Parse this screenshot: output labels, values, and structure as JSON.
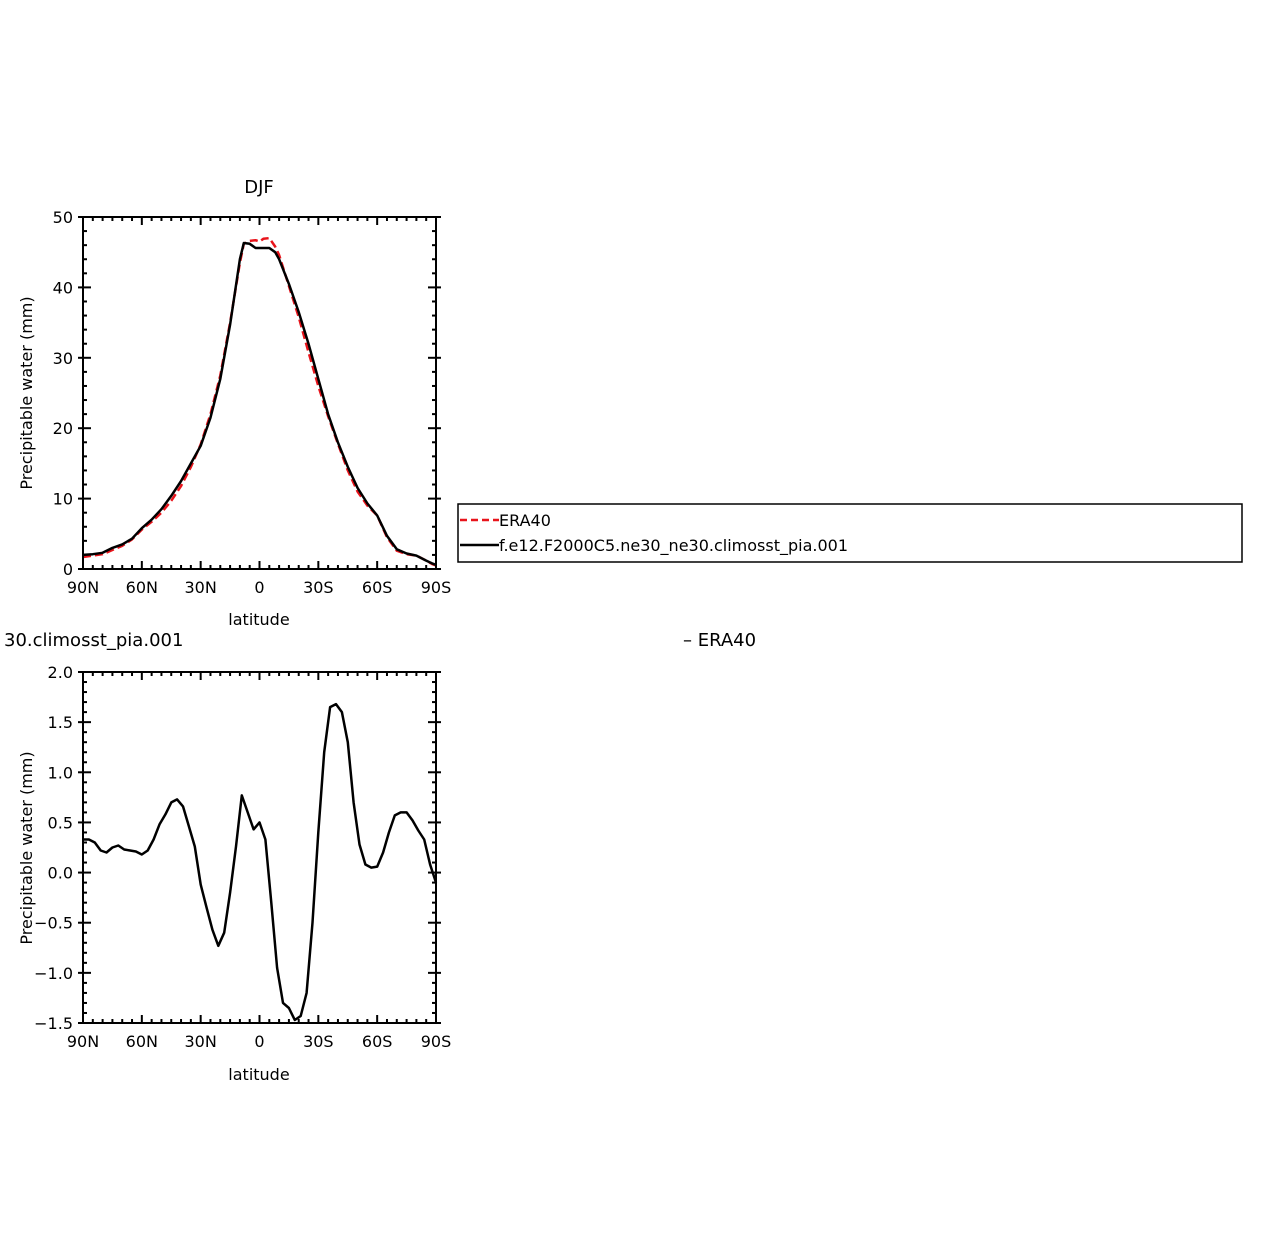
{
  "colors": {
    "era40": "#e8141b",
    "model": "#000000",
    "axis": "#000000",
    "background": "#ffffff"
  },
  "legend": {
    "entries": [
      {
        "label": "ERA40",
        "color": "#e8141b",
        "dash": true
      },
      {
        "label": "f.e12.F2000C5.ne30_ne30.climosst_pia.001",
        "color": "#000000",
        "dash": false
      }
    ]
  },
  "chart_data": [
    {
      "type": "line",
      "title": "DJF",
      "xlabel": "latitude",
      "ylabel": "Precipitable water (mm)",
      "xlim": [
        90,
        -90
      ],
      "ylim": [
        0,
        50
      ],
      "xticks": [
        90,
        60,
        30,
        0,
        -30,
        -60,
        -90
      ],
      "xtick_labels": [
        "90N",
        "60N",
        "30N",
        "0",
        "30S",
        "60S",
        "90S"
      ],
      "yticks": [
        0,
        10,
        20,
        30,
        40,
        50
      ],
      "ytick_labels": [
        "0",
        "10",
        "20",
        "30",
        "40",
        "50"
      ],
      "series": [
        {
          "name": "ERA40",
          "color": "#e8141b",
          "dash": true,
          "x": [
            90,
            85,
            80,
            75,
            70,
            65,
            60,
            55,
            50,
            45,
            40,
            35,
            30,
            25,
            20,
            15,
            10,
            8,
            5,
            2,
            0,
            -2,
            -5,
            -8,
            -10,
            -15,
            -20,
            -25,
            -30,
            -35,
            -40,
            -45,
            -50,
            -55,
            -60,
            -65,
            -70,
            -75,
            -80,
            -85,
            -88,
            -90
          ],
          "y": [
            1.7,
            1.9,
            2.1,
            2.7,
            3.3,
            4.2,
            5.6,
            6.7,
            8.0,
            9.7,
            11.8,
            14.5,
            17.7,
            22.0,
            27.5,
            35.0,
            43.5,
            46.2,
            46.6,
            46.7,
            46.5,
            46.9,
            47.0,
            45.8,
            44.6,
            40.2,
            35.8,
            30.8,
            26.0,
            21.7,
            17.8,
            14.0,
            11.0,
            9.0,
            7.6,
            4.5,
            2.6,
            2.1,
            1.9,
            1.2,
            0.7,
            0.5
          ]
        },
        {
          "name": "f.e12.F2000C5.ne30_ne30.climosst_pia.001",
          "color": "#000000",
          "dash": false,
          "x": [
            90,
            85,
            80,
            75,
            70,
            65,
            60,
            55,
            50,
            45,
            40,
            35,
            30,
            25,
            20,
            15,
            10,
            8,
            5,
            2,
            0,
            -2,
            -5,
            -8,
            -10,
            -15,
            -20,
            -25,
            -30,
            -35,
            -40,
            -45,
            -50,
            -55,
            -60,
            -65,
            -70,
            -75,
            -80,
            -85,
            -88,
            -90
          ],
          "y": [
            2.0,
            2.1,
            2.3,
            3.0,
            3.5,
            4.3,
            5.8,
            7.0,
            8.5,
            10.4,
            12.5,
            15.0,
            17.5,
            21.5,
            27.0,
            34.7,
            44.0,
            46.3,
            46.2,
            45.6,
            45.6,
            45.6,
            45.6,
            45.0,
            44.0,
            40.5,
            36.5,
            32.0,
            27.0,
            22.0,
            18.0,
            14.5,
            11.5,
            9.3,
            7.6,
            4.7,
            2.8,
            2.2,
            1.9,
            1.2,
            0.8,
            0.6
          ]
        }
      ]
    },
    {
      "type": "line",
      "title": "30.climosst_pia.001",
      "title_right": "– ERA40",
      "xlabel": "latitude",
      "ylabel": "Precipitable water (mm)",
      "xlim": [
        90,
        -90
      ],
      "ylim": [
        -1.5,
        2.0
      ],
      "xticks": [
        90,
        60,
        30,
        0,
        -30,
        -60,
        -90
      ],
      "xtick_labels": [
        "90N",
        "60N",
        "30N",
        "0",
        "30S",
        "60S",
        "90S"
      ],
      "yticks": [
        -1.5,
        -1.0,
        -0.5,
        0.0,
        0.5,
        1.0,
        1.5,
        2.0
      ],
      "ytick_labels": [
        "−1.5",
        "−1.0",
        "−0.5",
        "0.0",
        "0.5",
        "1.0",
        "1.5",
        "2.0"
      ],
      "series": [
        {
          "color": "#000000",
          "dash": false,
          "x": [
            90,
            87,
            84,
            81,
            78,
            75,
            72,
            69,
            66,
            63,
            60,
            57,
            54,
            51,
            48,
            45,
            42,
            39,
            36,
            33,
            30,
            27,
            24,
            21,
            18,
            15,
            12,
            9,
            6,
            3,
            0,
            -3,
            -6,
            -9,
            -12,
            -15,
            -18,
            -21,
            -24,
            -27,
            -30,
            -33,
            -36,
            -39,
            -42,
            -45,
            -48,
            -51,
            -54,
            -57,
            -60,
            -63,
            -66,
            -69,
            -72,
            -75,
            -78,
            -81,
            -84,
            -87,
            -90
          ],
          "y": [
            0.33,
            0.33,
            0.3,
            0.22,
            0.2,
            0.25,
            0.27,
            0.23,
            0.22,
            0.21,
            0.18,
            0.22,
            0.33,
            0.48,
            0.58,
            0.7,
            0.73,
            0.66,
            0.46,
            0.26,
            -0.12,
            -0.35,
            -0.57,
            -0.73,
            -0.6,
            -0.2,
            0.26,
            0.77,
            0.6,
            0.43,
            0.5,
            0.33,
            -0.3,
            -0.95,
            -1.3,
            -1.35,
            -1.47,
            -1.43,
            -1.2,
            -0.5,
            0.4,
            1.2,
            1.65,
            1.68,
            1.6,
            1.3,
            0.7,
            0.28,
            0.08,
            0.05,
            0.06,
            0.2,
            0.4,
            0.57,
            0.6,
            0.6,
            0.52,
            0.42,
            0.33,
            0.08,
            -0.1
          ]
        }
      ]
    }
  ]
}
